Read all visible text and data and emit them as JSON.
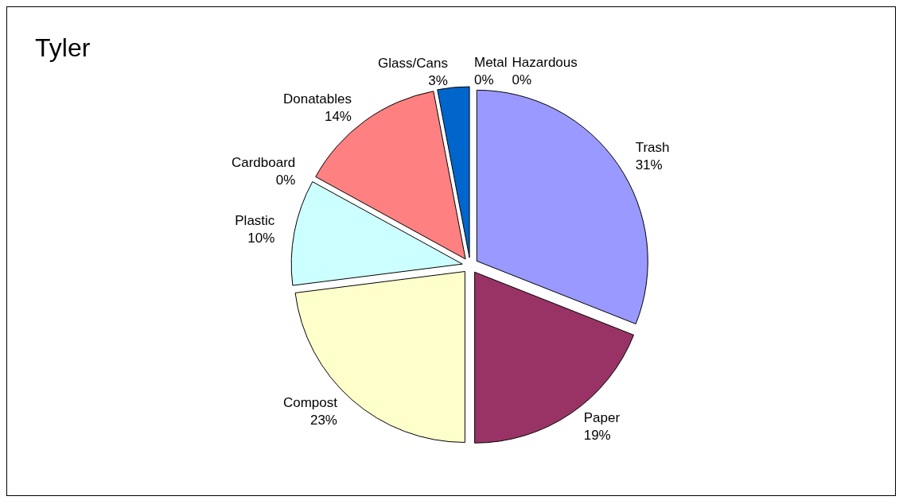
{
  "chart_data": {
    "type": "pie",
    "title": "Tyler",
    "categories": [
      "Trash",
      "Paper",
      "Compost",
      "Plastic",
      "Cardboard",
      "Donatables",
      "Glass/Cans",
      "Metal",
      "Hazardous"
    ],
    "values": [
      31,
      19,
      23,
      10,
      0,
      14,
      3,
      0,
      0
    ],
    "value_labels": [
      "31%",
      "19%",
      "23%",
      "10%",
      "0%",
      "14%",
      "3%",
      "0%",
      "0%"
    ],
    "colors": [
      "#9999ff",
      "#993366",
      "#ffffcc",
      "#ccffff",
      "#ffffff",
      "#ff8080",
      "#0066cc",
      "#ffffff",
      "#ffffff"
    ],
    "legend": false
  }
}
